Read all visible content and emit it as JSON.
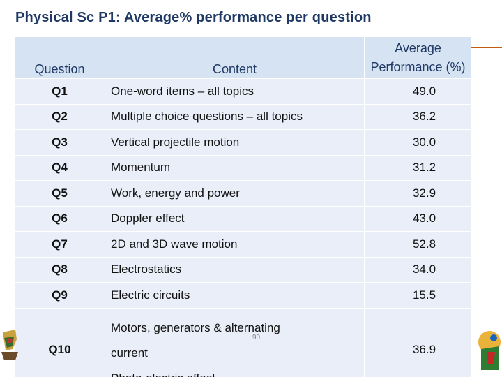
{
  "slide": {
    "title": "Physical Sc P1: Average% performance per question",
    "page_number": "90"
  },
  "table": {
    "headers": {
      "question": "Question",
      "content": "Content",
      "average_line1": "Average",
      "average_line2": "Performance (%)"
    },
    "rows": [
      {
        "question": "Q1",
        "content": "One-word items – all topics",
        "average": "49.0"
      },
      {
        "question": "Q2",
        "content": "Multiple choice questions – all topics",
        "average": "36.2"
      },
      {
        "question": "Q3",
        "content": "Vertical projectile motion",
        "average": "30.0"
      },
      {
        "question": "Q4",
        "content": "Momentum",
        "average": "31.2"
      },
      {
        "question": "Q5",
        "content": "Work, energy and power",
        "average": "32.9"
      },
      {
        "question": "Q6",
        "content": "Doppler effect",
        "average": "43.0"
      },
      {
        "question": "Q7",
        "content": "2D and 3D wave motion",
        "average": "52.8"
      },
      {
        "question": "Q8",
        "content": "Electrostatics",
        "average": "34.0"
      },
      {
        "question": "Q9",
        "content": "Electric circuits",
        "average": "15.5"
      }
    ],
    "last_row": {
      "question": "Q10",
      "content_line1": "Motors, generators & alternating",
      "content_line2": "current",
      "content_line3": "Photo-electric effect",
      "average": "36.9"
    }
  },
  "colors": {
    "title": "#1f3864",
    "header_bg": "#d6e3f3",
    "row_bg": "#e9eef8",
    "accent": "#c55a11"
  }
}
